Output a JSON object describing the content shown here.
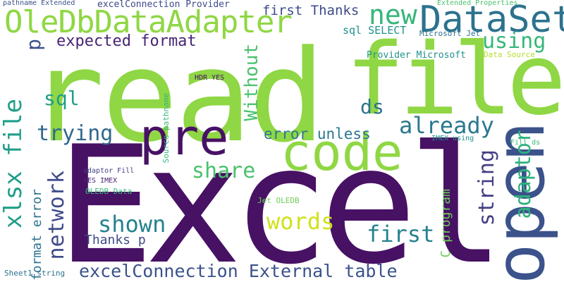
{
  "words": [
    {
      "text": "read",
      "color": "#8fd744"
    },
    {
      "text": "Excel",
      "color": "#471164"
    },
    {
      "text": "file",
      "color": "#8fd744"
    },
    {
      "text": "open",
      "color": "#3b528b"
    },
    {
      "text": "code",
      "color": "#8fd744"
    },
    {
      "text": "pre",
      "color": "#471164"
    },
    {
      "text": "OleDbDataAdapter",
      "color": "#8fd744"
    },
    {
      "text": "DataSet",
      "color": "#2c728e"
    },
    {
      "text": "new",
      "color": "#35b779"
    },
    {
      "text": "using",
      "color": "#35b779"
    },
    {
      "text": "xlsx file",
      "color": "#1f9e89"
    },
    {
      "text": "trying",
      "color": "#31688e"
    },
    {
      "text": "already",
      "color": "#2a788e"
    },
    {
      "text": "share",
      "color": "#4ac16d"
    },
    {
      "text": "shown",
      "color": "#26828e"
    },
    {
      "text": "words",
      "color": "#d0e11c"
    },
    {
      "text": "first",
      "color": "#26828e"
    },
    {
      "text": "network",
      "color": "#3e4a89"
    },
    {
      "text": "adaptor",
      "color": "#2db27d"
    },
    {
      "text": "string",
      "color": "#433e85"
    },
    {
      "text": "excelConnection External table",
      "color": "#3b528b"
    },
    {
      "text": "expected format",
      "color": "#482475"
    },
    {
      "text": "Without",
      "color": "#4ac16d"
    },
    {
      "text": "sql",
      "color": "#1f9e89"
    },
    {
      "text": "ds",
      "color": "#2c728e"
    },
    {
      "text": "p",
      "color": "#3b528b"
    },
    {
      "text": "error unless",
      "color": "#2a788e"
    },
    {
      "text": "first Thanks",
      "color": "#3e4a89"
    },
    {
      "text": "sql SELECT",
      "color": "#21918c"
    },
    {
      "text": "Thanks p",
      "color": "#3e4a89"
    },
    {
      "text": "C program",
      "color": "#6ece58"
    },
    {
      "text": "format error",
      "color": "#2c728e"
    },
    {
      "text": "Provider Microsoft",
      "color": "#21918c"
    },
    {
      "text": "Data Source",
      "color": "#b5de2b"
    },
    {
      "text": "Microsoft Jet",
      "color": "#2c728e"
    },
    {
      "text": "Extended Properties",
      "color": "#4ac16d"
    },
    {
      "text": "excelConnection Provider",
      "color": "#3e4a89"
    },
    {
      "text": "pathname Extended",
      "color": "#3b528b"
    },
    {
      "text": "HDR YES",
      "color": "#471164"
    },
    {
      "text": "Source pathname",
      "color": "#35b779"
    },
    {
      "text": "adaptor Fill",
      "color": "#433e85"
    },
    {
      "text": "YES IMEX",
      "color": "#482475"
    },
    {
      "text": "OLEDB Data",
      "color": "#35b779"
    },
    {
      "text": "Jet OLEDB",
      "color": "#6ece58"
    },
    {
      "text": "IMEX using",
      "color": "#21918c"
    },
    {
      "text": "Fill ds",
      "color": "#35b779"
    },
    {
      "text": "Sheet1 string",
      "color": "#2c728e"
    }
  ]
}
